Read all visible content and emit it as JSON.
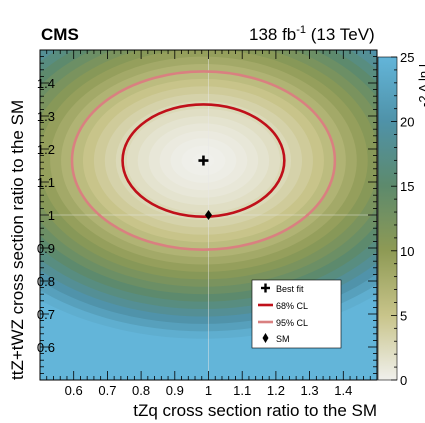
{
  "header": {
    "experiment": "CMS",
    "lumi_value": "138 fb",
    "lumi_exp": "-1",
    "energy": " (13 TeV)"
  },
  "chart_data": {
    "type": "heatmap",
    "xlabel": "tZq cross section ratio to the SM",
    "ylabel": "ttZ+tWZ cross section ratio to the SM",
    "xlim": [
      0.5,
      1.5
    ],
    "ylim": [
      0.5,
      1.5
    ],
    "xticks": [
      0.6,
      0.7,
      0.8,
      0.9,
      1,
      1.1,
      1.2,
      1.3,
      1.4
    ],
    "yticks": [
      0.6,
      0.7,
      0.8,
      0.9,
      1,
      1.1,
      1.2,
      1.3,
      1.4
    ],
    "colorbar": {
      "label": "-2 Δ ln L",
      "range": [
        0,
        25
      ],
      "ticks": [
        0,
        5,
        10,
        15,
        20,
        25
      ],
      "colors": [
        "#f0f0ec",
        "#c8c48a",
        "#8e9a55",
        "#5d8a6c",
        "#4f92a8",
        "#63b5d9"
      ]
    },
    "best_fit": {
      "x": 0.985,
      "y": 1.165
    },
    "sm_point": {
      "x": 1.0,
      "y": 1.0
    },
    "contours": [
      {
        "name": "68% CL",
        "center": [
          0.985,
          1.165
        ],
        "x_halfwidth": 0.24,
        "y_halfwidth": 0.17,
        "color": "#c0101a"
      },
      {
        "name": "95% CL",
        "center": [
          0.985,
          1.165
        ],
        "x_halfwidth": 0.39,
        "y_halfwidth": 0.27,
        "color": "#d98080"
      }
    ],
    "legend": {
      "placement": "lower-right",
      "entries": [
        {
          "label": "Best fit",
          "marker": "cross"
        },
        {
          "label": "68% CL",
          "marker": "line-dark-red"
        },
        {
          "label": "95% CL",
          "marker": "line-light-red"
        },
        {
          "label": "SM",
          "marker": "diamond"
        }
      ]
    }
  }
}
